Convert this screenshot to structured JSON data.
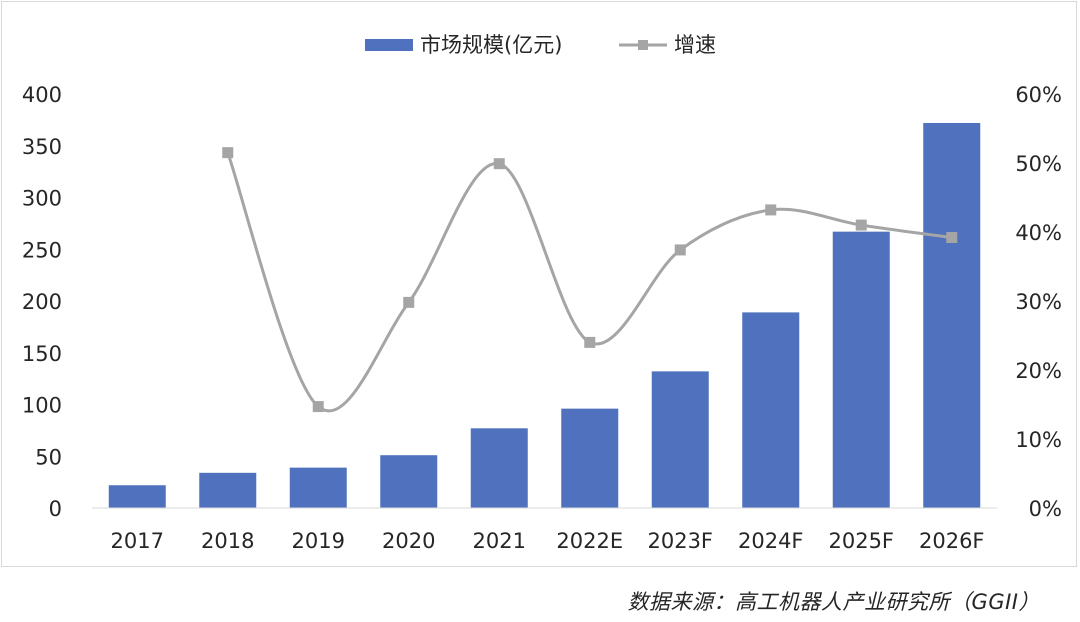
{
  "chart_data": {
    "type": "bar",
    "categories": [
      "2017",
      "2018",
      "2019",
      "2020",
      "2021",
      "2022E",
      "2023F",
      "2024F",
      "2025F",
      "2026F"
    ],
    "series": [
      {
        "name": "市场规模(亿元)",
        "type": "bar",
        "axis": "left",
        "color": "#4f71be",
        "values": [
          22,
          34,
          39,
          51,
          77,
          96,
          132,
          189,
          267,
          372
        ]
      },
      {
        "name": "增速",
        "type": "line",
        "axis": "right",
        "color": "#a5a5a5",
        "values": [
          null,
          51.5,
          14.7,
          29.8,
          49.9,
          24.0,
          37.4,
          43.2,
          41.0,
          39.2
        ]
      }
    ],
    "ylim_left": [
      0,
      400
    ],
    "yticks_left": [
      "0",
      "50",
      "100",
      "150",
      "200",
      "250",
      "300",
      "350",
      "400"
    ],
    "ylim_right": [
      0,
      60
    ],
    "yticks_right": [
      "0%",
      "10%",
      "20%",
      "30%",
      "40%",
      "50%",
      "60%"
    ],
    "legend_position": "top-center",
    "grid": false
  },
  "source_note": "数据来源：高工机器人产业研究所（GGII）"
}
